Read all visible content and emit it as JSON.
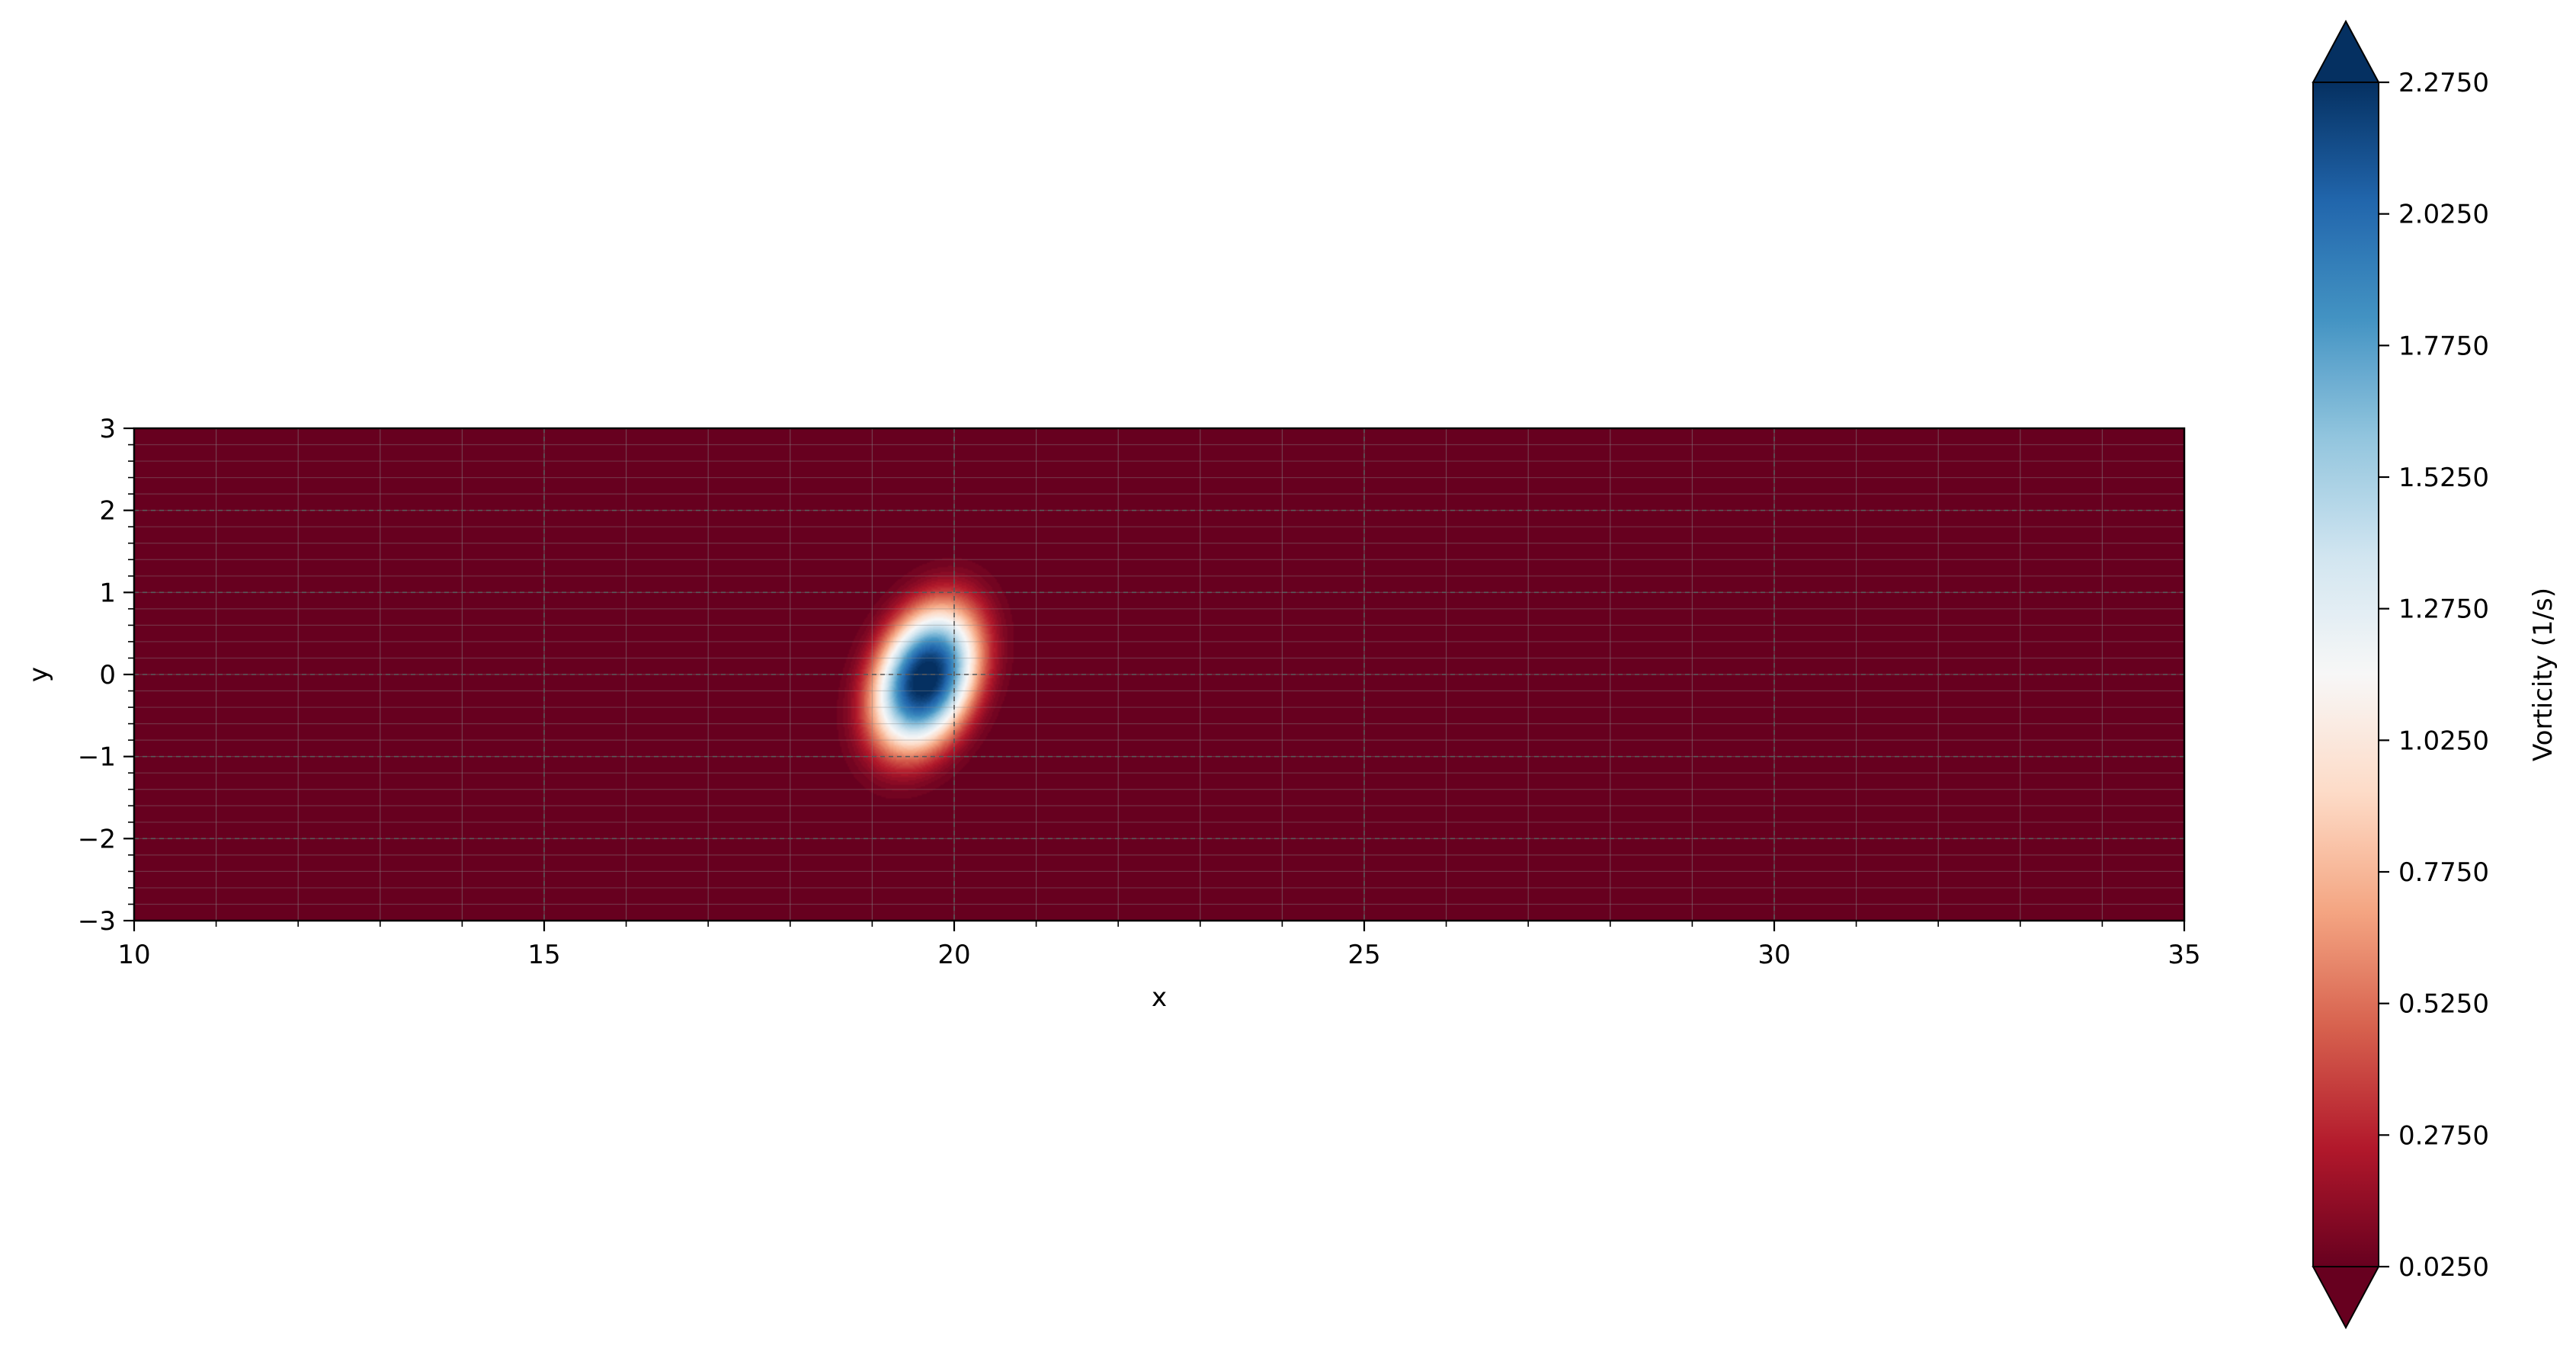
{
  "chart_data": {
    "type": "heatmap",
    "title": "",
    "xlabel": "x",
    "ylabel": "y",
    "xlim": [
      10,
      35
    ],
    "ylim": [
      -3,
      3
    ],
    "x_ticks": [
      "10",
      "15",
      "20",
      "25",
      "30",
      "35"
    ],
    "x_tick_values": [
      10,
      15,
      20,
      25,
      30,
      35
    ],
    "y_ticks": [
      "3",
      "2",
      "1",
      "0",
      "−1",
      "−2",
      "−3"
    ],
    "y_tick_values": [
      3,
      2,
      1,
      0,
      -1,
      -2,
      -3
    ],
    "grid": true,
    "colormap": "RdBu",
    "background_value": 0.025,
    "field": {
      "shape": "elliptical vortex",
      "center": [
        19.65,
        -0.05
      ],
      "peak_value": 2.35,
      "tilt_deg": -22
    },
    "colorbar": {
      "label": "Vorticity (1/s)",
      "min": 0.025,
      "max": 2.275,
      "extend": "both",
      "ticks": [
        "0.0250",
        "0.2750",
        "0.5250",
        "0.7750",
        "1.0250",
        "1.2750",
        "1.5250",
        "1.7750",
        "2.0250",
        "2.2750"
      ],
      "tick_values": [
        0.025,
        0.275,
        0.525,
        0.775,
        1.025,
        1.275,
        1.525,
        1.775,
        2.025,
        2.275
      ]
    }
  },
  "colors": {
    "low": "#67001f",
    "mid": "#f7f7f7",
    "high": "#053061"
  }
}
